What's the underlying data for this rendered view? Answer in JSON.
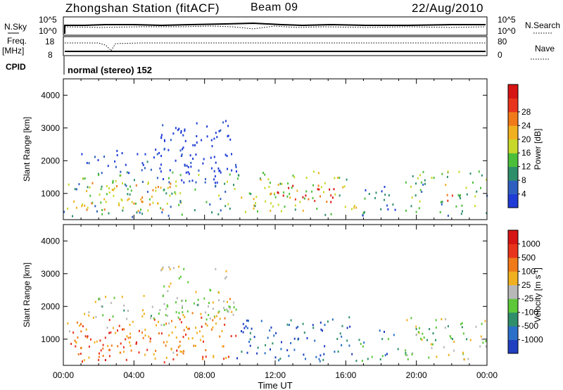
{
  "header": {
    "station": "Zhongshan Station (fitACF)",
    "beam": "Beam 09",
    "date": "22/Aug/2010"
  },
  "params": {
    "nsky_label": "N.Sky",
    "nsky_ticks": [
      "10^5",
      "10^0"
    ],
    "freq_label": "Freq.",
    "freq_unit": "[MHz]",
    "freq_ticks": [
      "18",
      "8"
    ],
    "cpid_label": "CPID",
    "nsearch_label": "N.Search",
    "nsearch_ticks": [
      "10^5",
      "10^0"
    ],
    "nave_label": "Nave",
    "nave_ticks": [
      "80",
      "0"
    ],
    "mode": "normal (stereo) 152"
  },
  "chart_data": [
    {
      "type": "heatmap",
      "title": "",
      "xlabel": "",
      "ylabel": "Slant Range [km]",
      "xlim": [
        0,
        24
      ],
      "ylim": [
        200,
        4500
      ],
      "yticks": [
        1000,
        2000,
        3000,
        4000
      ],
      "colorbar": {
        "label": "Power [dB]",
        "ticks": [
          "4",
          "8",
          "12",
          "16",
          "20",
          "24",
          "28"
        ],
        "colors": [
          "#1f3cd6",
          "#2e5fc0",
          "#2f8f6a",
          "#4cbf3a",
          "#c8d82a",
          "#f0b020",
          "#f07a1a",
          "#e8341c",
          "#d61414"
        ]
      },
      "regions": [
        {
          "t": [
            0.0,
            9.8
          ],
          "r": [
            300,
            1700
          ],
          "level": 0.35
        },
        {
          "t": [
            0.3,
            6.5
          ],
          "r": [
            500,
            1400
          ],
          "level": 0.6
        },
        {
          "t": [
            1.0,
            9.8
          ],
          "r": [
            1650,
            2400
          ],
          "level": 0.05
        },
        {
          "t": [
            5.5,
            9.5
          ],
          "r": [
            1300,
            3250
          ],
          "level": 0.02
        },
        {
          "t": [
            9.8,
            16.6
          ],
          "r": [
            350,
            1700
          ],
          "level": 0.45
        },
        {
          "t": [
            11.5,
            15.5
          ],
          "r": [
            700,
            1300
          ],
          "level": 0.85
        },
        {
          "t": [
            16.6,
            19.0
          ],
          "r": [
            350,
            1300
          ],
          "level": 0.2
        },
        {
          "t": [
            19.2,
            24.0
          ],
          "r": [
            350,
            1700
          ],
          "level": 0.35
        },
        {
          "t": [
            21.5,
            23.0
          ],
          "r": [
            800,
            1500
          ],
          "level": 0.7
        }
      ]
    },
    {
      "type": "heatmap",
      "title": "",
      "xlabel": "Time UT",
      "ylabel": "Slant Range [km]",
      "xlim": [
        0,
        24
      ],
      "ylim": [
        200,
        4500
      ],
      "yticks": [
        1000,
        2000,
        3000,
        4000
      ],
      "xticks": [
        "00:00",
        "04:00",
        "08:00",
        "12:00",
        "16:00",
        "20:00",
        "00:00"
      ],
      "colorbar": {
        "label": "Velocity [m s^-1]",
        "ticks": [
          "1000",
          "500",
          "100",
          "25",
          "-25",
          "-100",
          "-500",
          "-1000"
        ],
        "colors": [
          "#2040c0",
          "#2a70c8",
          "#2f8f6a",
          "#5cc83a",
          "#b8b8b8",
          "#f0b020",
          "#f07a1a",
          "#e8341c",
          "#d61414"
        ]
      },
      "regions": [
        {
          "t": [
            0.0,
            9.8
          ],
          "r": [
            300,
            1700
          ],
          "level": 0.72
        },
        {
          "t": [
            0.5,
            6.8
          ],
          "r": [
            400,
            1300
          ],
          "level": 0.75
        },
        {
          "t": [
            1.0,
            9.8
          ],
          "r": [
            1650,
            2400
          ],
          "level": 0.5
        },
        {
          "t": [
            5.5,
            9.5
          ],
          "r": [
            1300,
            3250
          ],
          "level": 0.5
        },
        {
          "t": [
            9.8,
            16.6
          ],
          "r": [
            350,
            1700
          ],
          "level": 0.15
        },
        {
          "t": [
            16.6,
            19.0
          ],
          "r": [
            350,
            1300
          ],
          "level": 0.25
        },
        {
          "t": [
            19.2,
            24.0
          ],
          "r": [
            350,
            1700
          ],
          "level": 0.45
        }
      ]
    }
  ]
}
